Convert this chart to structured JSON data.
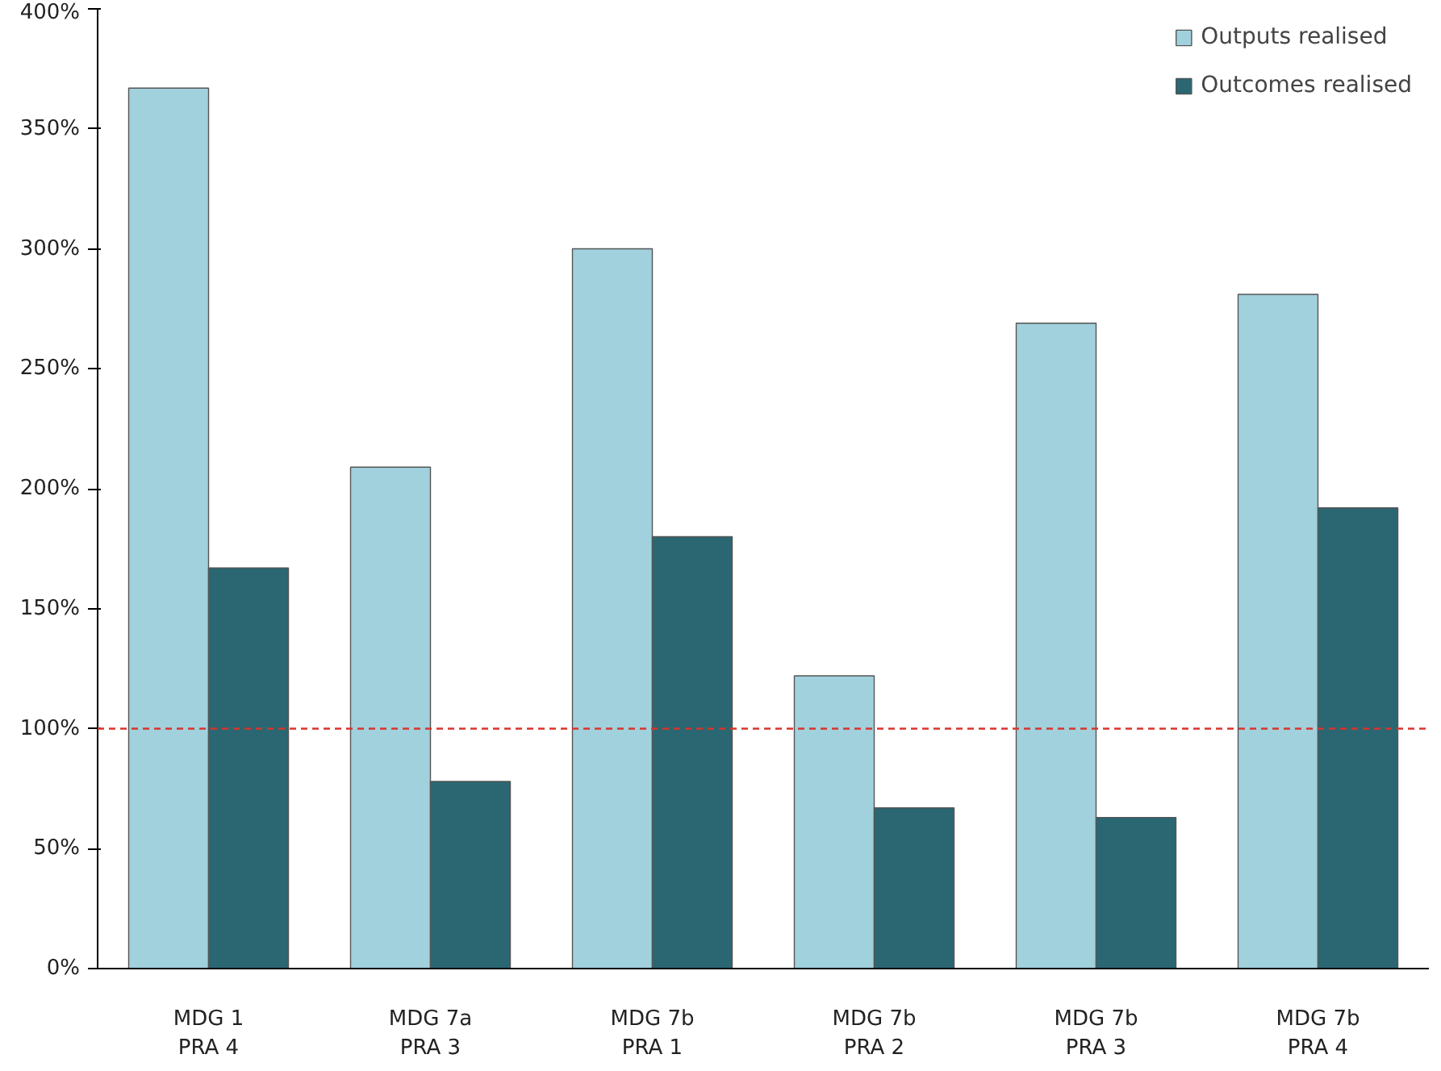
{
  "chart_data": {
    "type": "bar",
    "categories": [
      "MDG 1\nPRA 4",
      "MDG 7a\nPRA 3",
      "MDG 7b\nPRA 1",
      "MDG 7b\nPRA 2",
      "MDG 7b\nPRA 3",
      "MDG 7b\nPRA 4"
    ],
    "series": [
      {
        "name": "Outputs realised",
        "color": "#a0d1dc",
        "values": [
          367,
          209,
          300,
          122,
          269,
          281
        ]
      },
      {
        "name": "Outcomes realised",
        "color": "#2a6773",
        "values": [
          167,
          78,
          180,
          67,
          63,
          192
        ]
      }
    ],
    "ylim": [
      0,
      400
    ],
    "yticks": [
      {
        "value": 0,
        "label": "0%"
      },
      {
        "value": 50,
        "label": "50%"
      },
      {
        "value": 100,
        "label": "100%"
      },
      {
        "value": 150,
        "label": "150%"
      },
      {
        "value": 200,
        "label": "200%"
      },
      {
        "value": 250,
        "label": "250%"
      },
      {
        "value": 300,
        "label": "300%"
      },
      {
        "value": 350,
        "label": "350%"
      },
      {
        "value": 400,
        "label": "400%"
      }
    ],
    "ref_lines": [
      {
        "axis": "y",
        "value": 100,
        "color": "#d9342b",
        "line_style": "dashed"
      }
    ],
    "grid": false,
    "legend": "top right"
  }
}
